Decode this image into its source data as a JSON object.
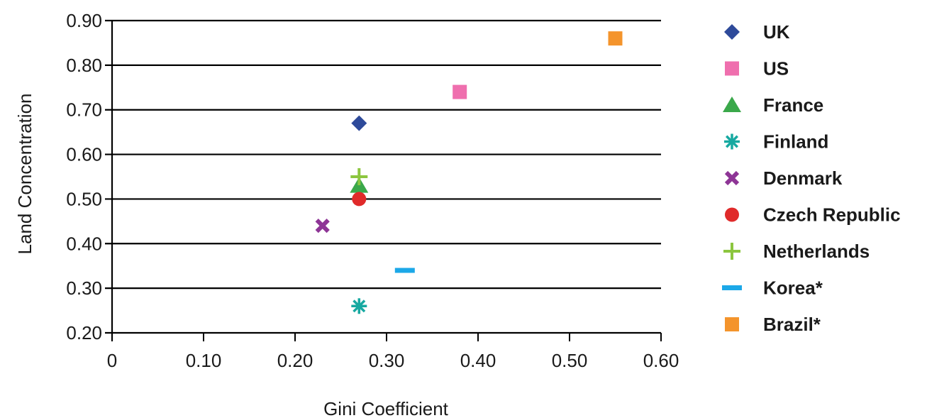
{
  "chart_data": {
    "type": "scatter",
    "xlabel": "Gini Coefficient",
    "ylabel": "Land Concentration",
    "xlim": [
      0,
      0.6
    ],
    "ylim": [
      0.2,
      0.9
    ],
    "x_ticks": [
      "0",
      "0.10",
      "0.20",
      "0.30",
      "0.40",
      "0.50",
      "0.60"
    ],
    "y_ticks": [
      "0.20",
      "0.30",
      "0.40",
      "0.50",
      "0.60",
      "0.70",
      "0.80",
      "0.90"
    ],
    "grid": "horizontal",
    "legend_position": "right",
    "series": [
      {
        "name": "UK",
        "marker": "diamond",
        "color": "#2e4a9a",
        "x": 0.27,
        "y": 0.67
      },
      {
        "name": "US",
        "marker": "square",
        "color": "#ef6fae",
        "x": 0.38,
        "y": 0.74
      },
      {
        "name": "France",
        "marker": "triangle",
        "color": "#3aa84a",
        "x": 0.27,
        "y": 0.53
      },
      {
        "name": "Finland",
        "marker": "asterisk",
        "color": "#17a9a1",
        "x": 0.27,
        "y": 0.26
      },
      {
        "name": "Denmark",
        "marker": "x",
        "color": "#8e3596",
        "x": 0.23,
        "y": 0.44
      },
      {
        "name": "Czech Republic",
        "marker": "circle",
        "color": "#e02a2a",
        "x": 0.27,
        "y": 0.5
      },
      {
        "name": "Netherlands",
        "marker": "plus",
        "color": "#8cc63f",
        "x": 0.27,
        "y": 0.55
      },
      {
        "name": "Korea*",
        "marker": "dash",
        "color": "#1ca8e8",
        "x": 0.32,
        "y": 0.34
      },
      {
        "name": "Brazil*",
        "marker": "square",
        "color": "#f4942c",
        "x": 0.55,
        "y": 0.86
      }
    ]
  }
}
